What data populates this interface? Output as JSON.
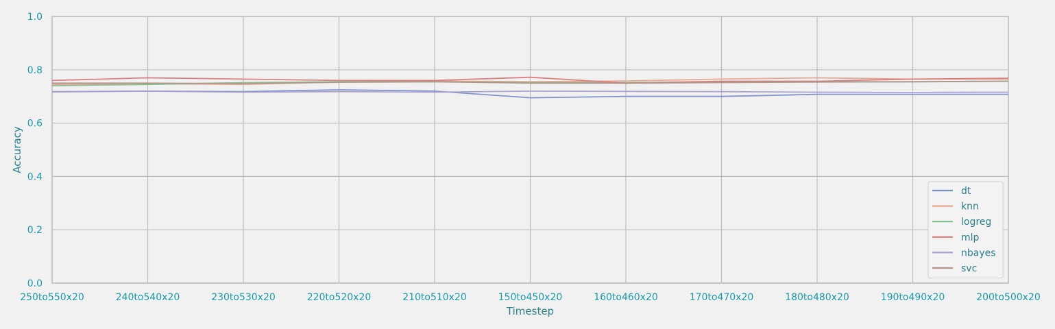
{
  "chart_data": {
    "type": "line",
    "title": "",
    "xlabel": "Timestep",
    "ylabel": "Accuracy",
    "ylim": [
      0,
      1
    ],
    "yticks": [
      "0.0",
      "0.2",
      "0.4",
      "0.6",
      "0.8",
      "1.0"
    ],
    "grid": true,
    "legend_position": "bottom-right",
    "categories": [
      "250to550x20",
      "240to540x20",
      "230to530x20",
      "220to520x20",
      "210to510x20",
      "150to450x20",
      "160to460x20",
      "170to470x20",
      "180to480x20",
      "190to490x20",
      "200to500x20"
    ],
    "series": [
      {
        "name": "dt",
        "color": "#7b8fc7",
        "values": [
          0.717,
          0.72,
          0.718,
          0.725,
          0.72,
          0.695,
          0.7,
          0.7,
          0.708,
          0.708,
          0.708
        ]
      },
      {
        "name": "knn",
        "color": "#e8a48c",
        "values": [
          0.745,
          0.748,
          0.745,
          0.755,
          0.758,
          0.755,
          0.758,
          0.765,
          0.77,
          0.765,
          0.765
        ]
      },
      {
        "name": "logreg",
        "color": "#7fbf8e",
        "values": [
          0.74,
          0.745,
          0.752,
          0.755,
          0.755,
          0.752,
          0.752,
          0.755,
          0.755,
          0.755,
          0.757
        ]
      },
      {
        "name": "mlp",
        "color": "#d97a7a",
        "values": [
          0.76,
          0.77,
          0.765,
          0.76,
          0.76,
          0.772,
          0.75,
          0.757,
          0.757,
          0.765,
          0.768
        ]
      },
      {
        "name": "nbayes",
        "color": "#a99fd1",
        "values": [
          0.718,
          0.72,
          0.716,
          0.718,
          0.716,
          0.72,
          0.719,
          0.718,
          0.716,
          0.715,
          0.716
        ]
      },
      {
        "name": "svc",
        "color": "#b0948a",
        "values": [
          0.75,
          0.75,
          0.748,
          0.753,
          0.755,
          0.75,
          0.75,
          0.752,
          0.754,
          0.755,
          0.757
        ]
      }
    ]
  }
}
